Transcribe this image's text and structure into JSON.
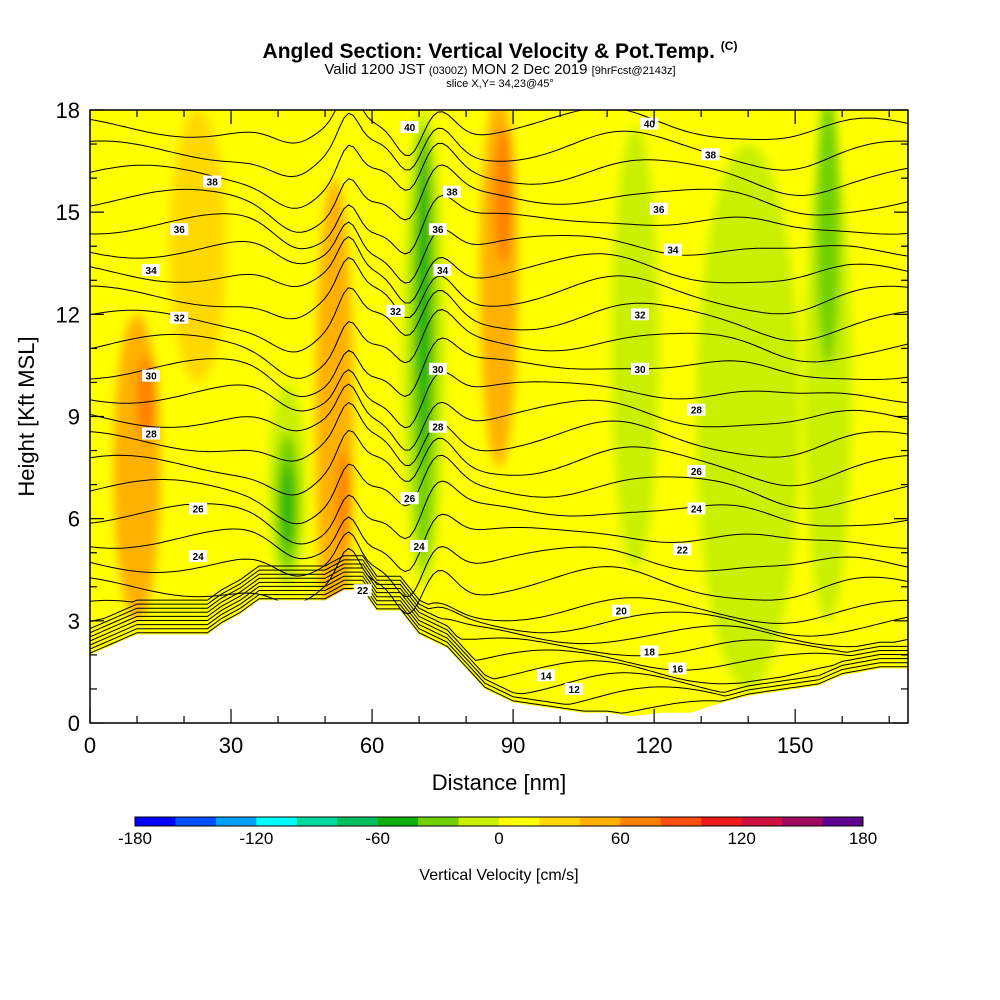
{
  "title": {
    "main": "Angled Section: Vertical Velocity & Pot.Temp.",
    "main_unit": "(C)",
    "valid_prefix": "Valid 1200 JST",
    "valid_utc": "(0300Z)",
    "valid_date": "MON 2 Dec 2019",
    "forecast": "[9hrFcst@2143z]",
    "slice": "slice X,Y= 34,23@45°"
  },
  "chart_data": {
    "type": "heatmap",
    "xlabel": "Distance [nm]",
    "ylabel": "Height [Kft MSL]",
    "xlim": [
      0,
      174
    ],
    "ylim": [
      0,
      18
    ],
    "x_ticks": [
      0,
      30,
      60,
      90,
      120,
      150
    ],
    "y_ticks": [
      0,
      3,
      6,
      9,
      12,
      15,
      18
    ],
    "colorbar": {
      "title": "Vertical Velocity [cm/s]",
      "ticks": [
        -180,
        -120,
        -60,
        0,
        60,
        120,
        180
      ],
      "range": [
        -180,
        180
      ],
      "step": 20,
      "colors": [
        "#0000ff",
        "#0050ff",
        "#00a0ff",
        "#00ffff",
        "#00dca0",
        "#00c060",
        "#10b010",
        "#70d000",
        "#c8f000",
        "#ffff00",
        "#ffd800",
        "#ffb000",
        "#ff8000",
        "#ff5010",
        "#f01818",
        "#d01040",
        "#a00860",
        "#600090"
      ]
    },
    "terrain_profile": [
      [
        0,
        2.0
      ],
      [
        5,
        2.3
      ],
      [
        10,
        2.6
      ],
      [
        25,
        2.6
      ],
      [
        28,
        2.9
      ],
      [
        32,
        3.2
      ],
      [
        36,
        3.6
      ],
      [
        50,
        3.6
      ],
      [
        54,
        3.9
      ],
      [
        58,
        3.9
      ],
      [
        61,
        3.3
      ],
      [
        66,
        3.3
      ],
      [
        70,
        2.6
      ],
      [
        76,
        2.2
      ],
      [
        80,
        1.6
      ],
      [
        84,
        1.0
      ],
      [
        90,
        0.6
      ],
      [
        95,
        0.5
      ],
      [
        100,
        0.4
      ],
      [
        105,
        0.3
      ],
      [
        110,
        0.3
      ],
      [
        115,
        0.2
      ],
      [
        122,
        0.3
      ],
      [
        128,
        0.3
      ],
      [
        132,
        0.5
      ],
      [
        140,
        0.8
      ],
      [
        145,
        0.9
      ],
      [
        150,
        1.0
      ],
      [
        155,
        1.1
      ],
      [
        160,
        1.4
      ],
      [
        168,
        1.6
      ],
      [
        174,
        1.6
      ]
    ],
    "vertical_velocity_features": [
      {
        "x": 10,
        "y": 7.5,
        "width_nm": 10,
        "height_kft": 9,
        "value": 40
      },
      {
        "x": 12,
        "y": 9.5,
        "width_nm": 4,
        "height_kft": 2.5,
        "value": 60
      },
      {
        "x": 23,
        "y": 14,
        "width_nm": 12,
        "height_kft": 8,
        "value": 20
      },
      {
        "x": 42,
        "y": 7,
        "width_nm": 8,
        "height_kft": 6,
        "value": -20
      },
      {
        "x": 42,
        "y": 6.5,
        "width_nm": 5,
        "height_kft": 4,
        "value": -40
      },
      {
        "x": 42,
        "y": 6.3,
        "width_nm": 2.5,
        "height_kft": 2.5,
        "value": -60
      },
      {
        "x": 52,
        "y": 9,
        "width_nm": 8,
        "height_kft": 14,
        "value": 40
      },
      {
        "x": 54,
        "y": 6.5,
        "width_nm": 3,
        "height_kft": 3,
        "value": 60
      },
      {
        "x": 71,
        "y": 11,
        "width_nm": 9,
        "height_kft": 14,
        "value": -20
      },
      {
        "x": 71,
        "y": 11,
        "width_nm": 5,
        "height_kft": 13,
        "value": -40
      },
      {
        "x": 71,
        "y": 12.5,
        "width_nm": 3,
        "height_kft": 10,
        "value": -60
      },
      {
        "x": 87,
        "y": 13,
        "width_nm": 8,
        "height_kft": 11,
        "value": 40
      },
      {
        "x": 88,
        "y": 15.5,
        "width_nm": 4,
        "height_kft": 4,
        "value": 60
      },
      {
        "x": 116,
        "y": 11,
        "width_nm": 10,
        "height_kft": 13,
        "value": -20
      },
      {
        "x": 140,
        "y": 9,
        "width_nm": 22,
        "height_kft": 16,
        "value": -10
      },
      {
        "x": 157,
        "y": 10,
        "width_nm": 10,
        "height_kft": 14,
        "value": -20
      },
      {
        "x": 157,
        "y": 14.5,
        "width_nm": 5,
        "height_kft": 8,
        "value": -40
      }
    ],
    "potential_temperature": {
      "levels": [
        12,
        14,
        16,
        18,
        20,
        22,
        24,
        26,
        28,
        30,
        32,
        34,
        36,
        38,
        40
      ],
      "labels": [
        {
          "text": "40",
          "x": 68,
          "y": 17.5
        },
        {
          "text": "40",
          "x": 119,
          "y": 17.6
        },
        {
          "text": "38",
          "x": 26,
          "y": 15.9
        },
        {
          "text": "38",
          "x": 77,
          "y": 15.6
        },
        {
          "text": "38",
          "x": 132,
          "y": 16.7
        },
        {
          "text": "36",
          "x": 19,
          "y": 14.5
        },
        {
          "text": "36",
          "x": 74,
          "y": 14.5
        },
        {
          "text": "36",
          "x": 121,
          "y": 15.1
        },
        {
          "text": "34",
          "x": 13,
          "y": 13.3
        },
        {
          "text": "34",
          "x": 75,
          "y": 13.3
        },
        {
          "text": "34",
          "x": 124,
          "y": 13.9
        },
        {
          "text": "32",
          "x": 19,
          "y": 11.9
        },
        {
          "text": "32",
          "x": 65,
          "y": 12.1
        },
        {
          "text": "32",
          "x": 117,
          "y": 12.0
        },
        {
          "text": "30",
          "x": 13,
          "y": 10.2
        },
        {
          "text": "30",
          "x": 74,
          "y": 10.4
        },
        {
          "text": "30",
          "x": 117,
          "y": 10.4
        },
        {
          "text": "28",
          "x": 13,
          "y": 8.5
        },
        {
          "text": "28",
          "x": 74,
          "y": 8.7
        },
        {
          "text": "28",
          "x": 129,
          "y": 9.2
        },
        {
          "text": "26",
          "x": 23,
          "y": 6.3
        },
        {
          "text": "26",
          "x": 68,
          "y": 6.6
        },
        {
          "text": "26",
          "x": 129,
          "y": 7.4
        },
        {
          "text": "24",
          "x": 23,
          "y": 4.9
        },
        {
          "text": "24",
          "x": 70,
          "y": 5.2
        },
        {
          "text": "24",
          "x": 129,
          "y": 6.3
        },
        {
          "text": "22",
          "x": 58,
          "y": 3.9
        },
        {
          "text": "22",
          "x": 126,
          "y": 5.1
        },
        {
          "text": "20",
          "x": 113,
          "y": 3.3
        },
        {
          "text": "18",
          "x": 119,
          "y": 2.1
        },
        {
          "text": "16",
          "x": 125,
          "y": 1.6
        },
        {
          "text": "14",
          "x": 97,
          "y": 1.4
        },
        {
          "text": "12",
          "x": 103,
          "y": 1.0
        }
      ]
    }
  }
}
